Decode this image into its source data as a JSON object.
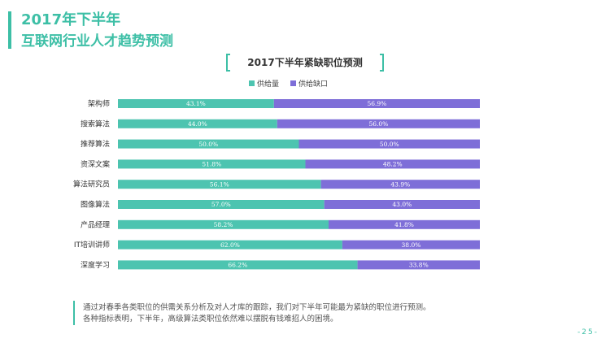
{
  "header": {
    "year_title": "2017年下半年",
    "subtitle": "互联网行业人才趋势预测"
  },
  "colors": {
    "accent": "#3dbfa6",
    "supply": "#4dc4b0",
    "gap": "#7e6ed8"
  },
  "chart_data": {
    "type": "bar",
    "orientation": "horizontal",
    "stacked": true,
    "title": "2017下半年紧缺职位预测",
    "legend_position": "top",
    "categories": [
      "架构师",
      "搜索算法",
      "推荐算法",
      "资深文案",
      "算法研究员",
      "图像算法",
      "产品经理",
      "IT培训讲师",
      "深度学习"
    ],
    "series": [
      {
        "name": "供给量",
        "color": "#4dc4b0",
        "values": [
          43.1,
          44.0,
          50.0,
          51.8,
          56.1,
          57.0,
          58.2,
          62.0,
          66.2
        ],
        "labels": [
          "43.1%",
          "44.0%",
          "50.0%",
          "51.8%",
          "56.1%",
          "57.0%",
          "58.2%",
          "62.0%",
          "66.2%"
        ]
      },
      {
        "name": "供给缺口",
        "color": "#7e6ed8",
        "values": [
          56.9,
          56.0,
          50.0,
          48.2,
          43.9,
          43.0,
          41.8,
          38.0,
          33.8
        ],
        "labels": [
          "56.9%",
          "56.0%",
          "50.0%",
          "48.2%",
          "43.9%",
          "43.0%",
          "41.8%",
          "38.0%",
          "33.8%"
        ]
      }
    ],
    "xlim": [
      0,
      100
    ],
    "grid": false
  },
  "footer": {
    "line1": "通过对春季各类职位的供需关系分析及对人才库的跟踪，我们对下半年可能最为紧缺的职位进行预测。",
    "line2": "各种指标表明，下半年，高级算法类职位依然难以摆脱有钱难招人的困境。"
  },
  "page_number": "-25-"
}
